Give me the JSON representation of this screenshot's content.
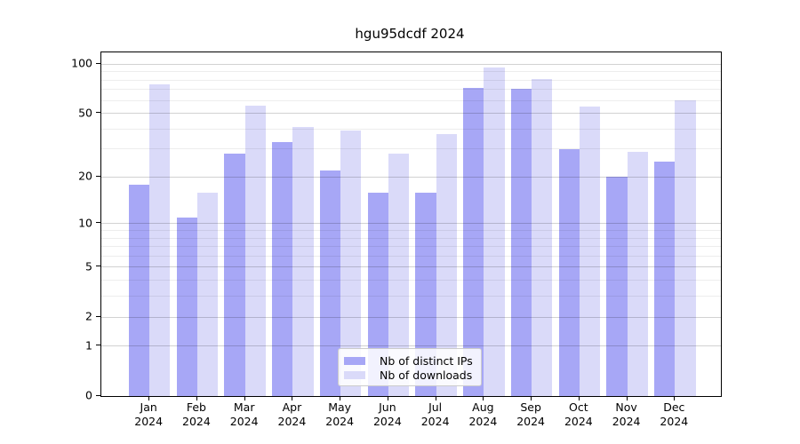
{
  "chart_data": {
    "type": "bar",
    "title": "hgu95dcdf 2024",
    "categories": [
      "Jan",
      "Feb",
      "Mar",
      "Apr",
      "May",
      "Jun",
      "Jul",
      "Aug",
      "Sep",
      "Oct",
      "Nov",
      "Dec"
    ],
    "category_year": "2024",
    "series": [
      {
        "name": "Nb of distinct IPs",
        "color": "#a7a7f6",
        "values": [
          18,
          11,
          28,
          33,
          22,
          16,
          16,
          72,
          71,
          30,
          20,
          25
        ]
      },
      {
        "name": "Nb of downloads",
        "color": "#dadaf9",
        "values": [
          75,
          16,
          56,
          41,
          39,
          28,
          37,
          95,
          81,
          55,
          29,
          60
        ]
      }
    ],
    "y_axis": {
      "scale": "log1p",
      "ticks": [
        0,
        1,
        2,
        5,
        10,
        20,
        50,
        100
      ],
      "minor_ticks": [
        3,
        4,
        6,
        7,
        8,
        9,
        30,
        40,
        60,
        70,
        80,
        90
      ],
      "max": 118,
      "min": 0
    },
    "x_axis": {
      "label": ""
    },
    "grid": true,
    "legend_position": "lower center"
  }
}
